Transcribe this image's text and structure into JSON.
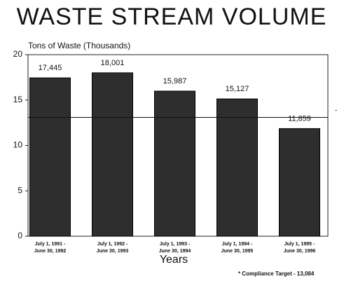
{
  "chart_data": {
    "type": "bar",
    "title": "WASTE STREAM VOLUME",
    "y_label": "Tons of Waste (Thousands)",
    "x_label": "Years",
    "categories": [
      [
        "July 1, 1991 -",
        "June 30, 1992"
      ],
      [
        "July 1, 1992 -",
        "June 30, 1993"
      ],
      [
        "July 1, 1993 -",
        "June 30, 1994"
      ],
      [
        "July 1, 1994 -",
        "June 30, 1995"
      ],
      [
        "July 1, 1995 -",
        "June 30, 1996"
      ]
    ],
    "values": [
      17.445,
      18.001,
      15.987,
      15.127,
      11.859
    ],
    "value_labels": [
      "17,445",
      "18,001",
      "15,987",
      "15,127",
      "11,859"
    ],
    "color": "#2e2e2e",
    "ylim": [
      0,
      20
    ],
    "yticks": [
      0,
      5,
      10,
      15,
      20
    ],
    "target": {
      "value": 13.084,
      "label": "* Compliance Target - 13,084"
    }
  }
}
